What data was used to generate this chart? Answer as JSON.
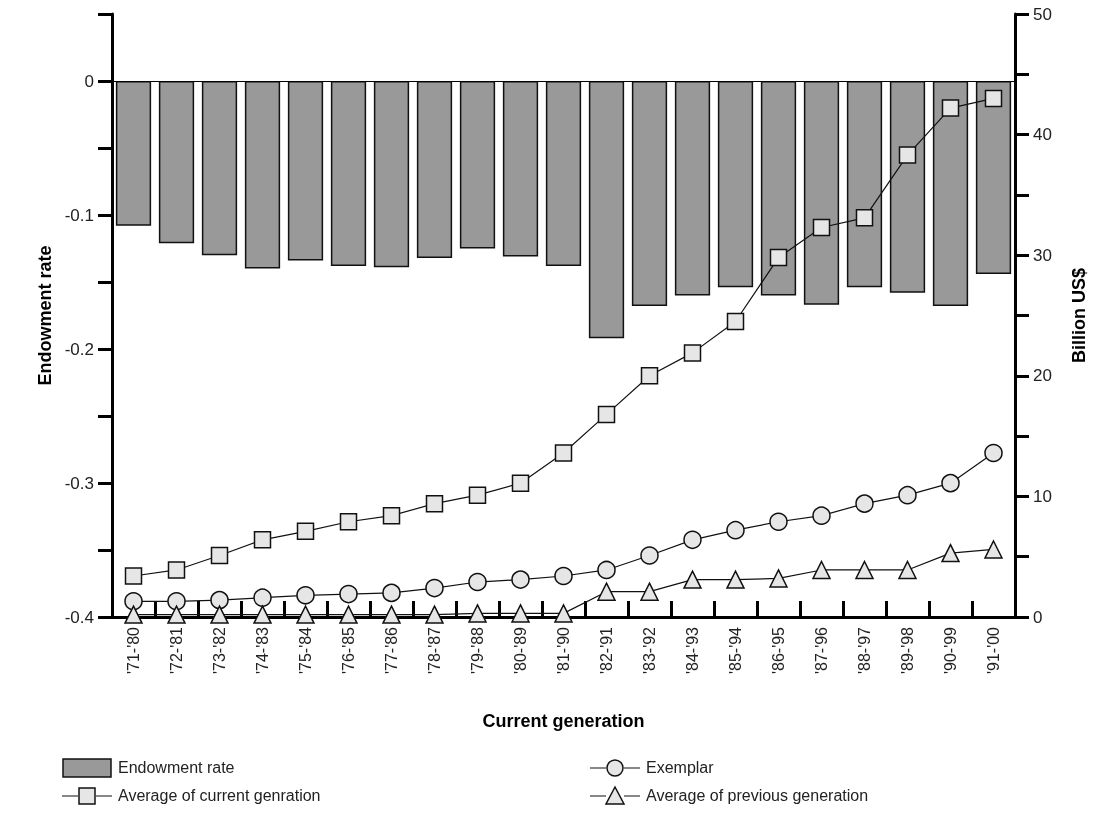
{
  "chart_data": {
    "type": "bar",
    "xlabel": "Current generation",
    "ylabel": "Endowment rate",
    "y2label": "Billion US$",
    "categories": [
      "'71-'80",
      "'72-'81",
      "'73-'82",
      "'74-'83",
      "'75-'84",
      "'76-'85",
      "'77-'86",
      "'78-'87",
      "'79-'88",
      "'80-'89",
      "'81-'90",
      "'82-'91",
      "'83-'92",
      "'84-'93",
      "'85-'94",
      "'86-'95",
      "'87-'96",
      "'88-'97",
      "'89-'98",
      "'90-'99",
      "'91-'00"
    ],
    "series": [
      {
        "name": "Endowment rate",
        "type": "bar",
        "color": "#999999",
        "values": [
          -0.108,
          -0.121,
          -0.13,
          -0.14,
          -0.134,
          -0.138,
          -0.139,
          -0.132,
          -0.125,
          -0.131,
          -0.138,
          -0.192,
          -0.168,
          -0.16,
          -0.154,
          -0.16,
          -0.167,
          -0.154,
          -0.158,
          -0.168,
          -0.144
        ]
      },
      {
        "name": "Exemplar",
        "type": "line",
        "axis": "y2",
        "marker": "circle",
        "color": "#e6e6e6",
        "values": [
          1.3,
          1.3,
          1.4,
          1.6,
          1.8,
          1.9,
          2.0,
          2.4,
          2.9,
          3.1,
          3.4,
          3.9,
          5.1,
          6.4,
          7.2,
          7.9,
          8.4,
          9.4,
          10.1,
          11.1,
          13.6
        ]
      },
      {
        "name": "Average of current genration",
        "type": "line",
        "axis": "y2",
        "marker": "square",
        "color": "#e6e6e6",
        "values": [
          3.4,
          3.9,
          5.1,
          6.4,
          7.1,
          7.9,
          8.4,
          9.4,
          10.1,
          11.1,
          13.6,
          16.8,
          20.0,
          21.9,
          24.5,
          29.8,
          32.3,
          33.1,
          38.3,
          42.2,
          43.0
        ]
      },
      {
        "name": "Average of previous generation",
        "type": "line",
        "axis": "y2",
        "marker": "triangle",
        "color": "#e6e6e6",
        "values": [
          0.2,
          0.2,
          0.2,
          0.2,
          0.2,
          0.2,
          0.2,
          0.2,
          0.3,
          0.3,
          0.3,
          2.1,
          2.1,
          3.1,
          3.1,
          3.2,
          3.9,
          3.9,
          3.9,
          5.3,
          5.6
        ]
      }
    ],
    "ylim": [
      -0.4,
      0.05
    ],
    "yticks": [
      -0.4,
      {
        "value": -0.35,
        "label": null
      },
      -0.3,
      {
        "value": -0.25,
        "label": null
      },
      -0.2,
      {
        "value": -0.15,
        "label": null
      },
      -0.1,
      {
        "value": -0.05,
        "label": null
      },
      0,
      {
        "value": 0.05,
        "label": null
      }
    ],
    "y2lim": [
      0,
      50
    ],
    "y2ticks": [
      0,
      {
        "value": 5,
        "label": null
      },
      10,
      {
        "value": 15,
        "label": null
      },
      20,
      {
        "value": 25,
        "label": null
      },
      30,
      {
        "value": 35,
        "label": null
      },
      40,
      {
        "value": 45,
        "label": null
      },
      50
    ],
    "ref_lines": [
      {
        "axis": "y",
        "value": 0
      }
    ],
    "grid": false,
    "legend": "bottom"
  }
}
